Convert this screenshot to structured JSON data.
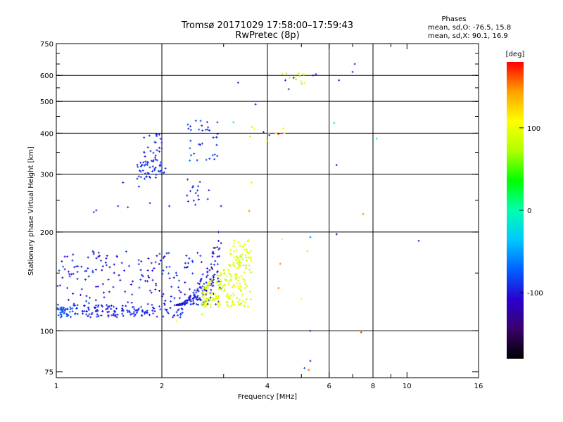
{
  "chart_data": {
    "type": "scatter",
    "title": "Tromsø 20171029 17:58:00–17:59:43",
    "subtitle": "RwPretec (8p)",
    "stats": {
      "heading": "Phases",
      "line_o": "mean, sd,O: -76.5, 15.8",
      "line_x": "mean, sd,X:  90.1, 16.9"
    },
    "xlabel": "Frequency [MHz]",
    "ylabel": "Stationary phase Virtual Height [km]",
    "xscale": "log",
    "yscale": "log",
    "xlim": [
      1,
      16
    ],
    "ylim": [
      72,
      750
    ],
    "x_ticks": [
      {
        "value": 1,
        "label": "1"
      },
      {
        "value": 2,
        "label": "2"
      },
      {
        "value": 4,
        "label": "4"
      },
      {
        "value": 6,
        "label": "6"
      },
      {
        "value": 8,
        "label": "8"
      },
      {
        "value": 10,
        "label": "10"
      },
      {
        "value": 16,
        "label": "16"
      }
    ],
    "x_minor_ticks": [
      3,
      5,
      7,
      9
    ],
    "x_gridlines": [
      2,
      4,
      6,
      8
    ],
    "y_ticks": [
      {
        "value": 75,
        "label": "75"
      },
      {
        "value": 100,
        "label": "100"
      },
      {
        "value": 200,
        "label": "200"
      },
      {
        "value": 300,
        "label": "300"
      },
      {
        "value": 400,
        "label": "400"
      },
      {
        "value": 500,
        "label": "500"
      },
      {
        "value": 600,
        "label": "600"
      },
      {
        "value": 750,
        "label": "750"
      }
    ],
    "y_gridlines": [
      100,
      200,
      300,
      400,
      500,
      600
    ],
    "colorbar": {
      "label": "[deg]",
      "range": [
        -180,
        180
      ],
      "ticks": [
        {
          "value": 100,
          "label": "100"
        },
        {
          "value": 0,
          "label": "0"
        },
        {
          "value": -100,
          "label": "-100"
        }
      ],
      "stops": [
        "#000000",
        "#3a006a",
        "#2a00d0",
        "#0060ff",
        "#00c8ff",
        "#00ffb0",
        "#00ff00",
        "#b0ff00",
        "#ffff00",
        "#ffa000",
        "#ff0000"
      ]
    },
    "clusters": [
      {
        "name": "o-low",
        "fx": [
          1.0,
          1.12
        ],
        "hy": [
          110,
          118
        ],
        "phase": [
          -90,
          -70
        ],
        "n": 40
      },
      {
        "name": "o-main",
        "fx": [
          1.12,
          2.3
        ],
        "hy": [
          110,
          120
        ],
        "phase": [
          -110,
          -80
        ],
        "n": 140
      },
      {
        "name": "o-spread",
        "fx": [
          1.0,
          2.6
        ],
        "hy": [
          120,
          175
        ],
        "phase": [
          -115,
          -80
        ],
        "n": 160
      },
      {
        "name": "o-rise",
        "fx": [
          2.2,
          2.95
        ],
        "hy": [
          120,
          205
        ],
        "phase": [
          -115,
          -80
        ],
        "n": 160
      },
      {
        "name": "o-f1",
        "fx": [
          1.7,
          2.05
        ],
        "hy": [
          290,
          330
        ],
        "phase": [
          -100,
          -80
        ],
        "n": 50
      },
      {
        "name": "o-f2",
        "fx": [
          1.75,
          2.0
        ],
        "hy": [
          330,
          400
        ],
        "phase": [
          -100,
          -80
        ],
        "n": 25
      },
      {
        "name": "o-f3",
        "fx": [
          2.35,
          2.9
        ],
        "hy": [
          330,
          440
        ],
        "phase": [
          -100,
          -70
        ],
        "n": 35
      },
      {
        "name": "o-mid",
        "fx": [
          2.35,
          2.75
        ],
        "hy": [
          240,
          290
        ],
        "phase": [
          -100,
          -85
        ],
        "n": 15
      },
      {
        "name": "x-main",
        "fx": [
          2.6,
          3.6
        ],
        "hy": [
          118,
          170
        ],
        "phase": [
          70,
          110
        ],
        "n": 190
      },
      {
        "name": "x-upper",
        "fx": [
          3.1,
          3.6
        ],
        "hy": [
          160,
          190
        ],
        "phase": [
          85,
          105
        ],
        "n": 25
      },
      {
        "name": "x-f",
        "fx": [
          3.3,
          4.5
        ],
        "hy": [
          380,
          420
        ],
        "phase": [
          60,
          110
        ],
        "n": 8
      },
      {
        "name": "high",
        "fx": [
          4.3,
          5.2
        ],
        "hy": [
          560,
          610
        ],
        "phase": [
          60,
          110
        ],
        "n": 12
      }
    ],
    "points": [
      {
        "x": 1.3,
        "y": 233,
        "phase": -95
      },
      {
        "x": 1.28,
        "y": 230,
        "phase": -95
      },
      {
        "x": 1.55,
        "y": 283,
        "phase": -95
      },
      {
        "x": 1.72,
        "y": 275,
        "phase": -90
      },
      {
        "x": 1.5,
        "y": 240,
        "phase": -90
      },
      {
        "x": 1.6,
        "y": 238,
        "phase": -90
      },
      {
        "x": 1.85,
        "y": 245,
        "phase": -95
      },
      {
        "x": 2.1,
        "y": 240,
        "phase": -90
      },
      {
        "x": 2.5,
        "y": 263,
        "phase": -95
      },
      {
        "x": 2.95,
        "y": 240,
        "phase": -100
      },
      {
        "x": 2.9,
        "y": 200,
        "phase": -105
      },
      {
        "x": 2.95,
        "y": 185,
        "phase": -120
      },
      {
        "x": 3.6,
        "y": 283,
        "phase": 90
      },
      {
        "x": 3.55,
        "y": 232,
        "phase": 150
      },
      {
        "x": 4.0,
        "y": 400,
        "phase": -95
      },
      {
        "x": 4.6,
        "y": 545,
        "phase": -90
      },
      {
        "x": 4.5,
        "y": 580,
        "phase": -100
      },
      {
        "x": 4.75,
        "y": 590,
        "phase": -100
      },
      {
        "x": 5.4,
        "y": 600,
        "phase": -110
      },
      {
        "x": 5.5,
        "y": 605,
        "phase": -100
      },
      {
        "x": 7.1,
        "y": 650,
        "phase": -100
      },
      {
        "x": 7.0,
        "y": 615,
        "phase": -100
      },
      {
        "x": 6.4,
        "y": 580,
        "phase": -110
      },
      {
        "x": 3.3,
        "y": 570,
        "phase": -90
      },
      {
        "x": 3.7,
        "y": 490,
        "phase": -100
      },
      {
        "x": 6.3,
        "y": 320,
        "phase": -100
      },
      {
        "x": 6.2,
        "y": 430,
        "phase": -20
      },
      {
        "x": 8.2,
        "y": 385,
        "phase": -20
      },
      {
        "x": 7.5,
        "y": 227,
        "phase": 150
      },
      {
        "x": 6.3,
        "y": 197,
        "phase": -110
      },
      {
        "x": 10.8,
        "y": 188,
        "phase": -95
      },
      {
        "x": 5.3,
        "y": 193,
        "phase": -60
      },
      {
        "x": 4.4,
        "y": 190,
        "phase": 110
      },
      {
        "x": 4.35,
        "y": 160,
        "phase": 150
      },
      {
        "x": 4.3,
        "y": 135,
        "phase": 150
      },
      {
        "x": 5.2,
        "y": 175,
        "phase": 120
      },
      {
        "x": 5.0,
        "y": 125,
        "phase": 110
      },
      {
        "x": 4.0,
        "y": 100,
        "phase": -120
      },
      {
        "x": 5.3,
        "y": 100,
        "phase": -130
      },
      {
        "x": 7.4,
        "y": 99,
        "phase": 170
      },
      {
        "x": 5.3,
        "y": 81,
        "phase": -100
      },
      {
        "x": 5.25,
        "y": 76,
        "phase": 160
      },
      {
        "x": 5.1,
        "y": 77,
        "phase": -80
      },
      {
        "x": 2.2,
        "y": 107,
        "phase": 100
      },
      {
        "x": 2.6,
        "y": 112,
        "phase": 80
      },
      {
        "x": 4.3,
        "y": 398,
        "phase": 180
      },
      {
        "x": 4.05,
        "y": 395,
        "phase": -100
      },
      {
        "x": 3.2,
        "y": 432,
        "phase": 20
      },
      {
        "x": 3.9,
        "y": 403,
        "phase": -110
      }
    ]
  }
}
